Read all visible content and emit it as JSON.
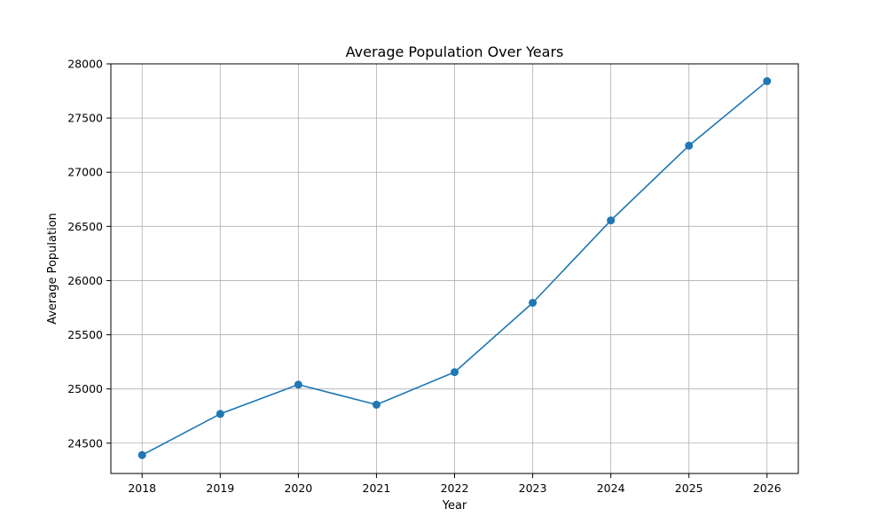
{
  "chart_data": {
    "type": "line",
    "title": "Average Population Over Years",
    "xlabel": "Year",
    "ylabel": "Average Population",
    "x": [
      2018,
      2019,
      2020,
      2021,
      2022,
      2023,
      2024,
      2025,
      2026
    ],
    "series": [
      {
        "values": [
          24390,
          24770,
          25040,
          24855,
          25155,
          25795,
          26555,
          27245,
          27840
        ],
        "color": "#1f77b4",
        "marker": "circle"
      }
    ],
    "xlim": [
      2017.6,
      2026.4
    ],
    "ylim": [
      24220,
      28000
    ],
    "yticks": [
      24500,
      25000,
      25500,
      26000,
      26500,
      27000,
      27500,
      28000
    ],
    "grid": true,
    "legend": "none"
  }
}
